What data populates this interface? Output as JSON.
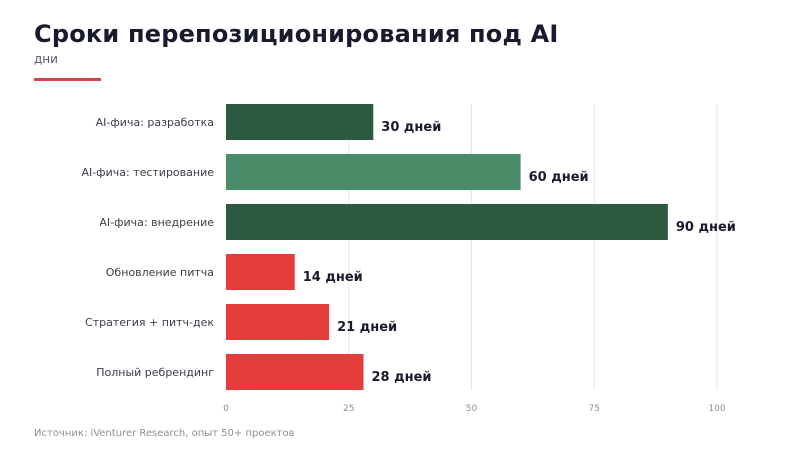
{
  "header": {
    "title": "Сроки перепозиционирования под AI",
    "subtitle": "дни"
  },
  "footer": {
    "source": "Источник: iVenturer Research, опыт 50+ проектов"
  },
  "colors": {
    "dark_green": "#2d5a3f",
    "light_green": "#4a8c68",
    "red": "#e53c3c",
    "accent": "#d64545",
    "grid": "#e4e6ea"
  },
  "chart_data": {
    "type": "bar",
    "orientation": "horizontal",
    "categories": [
      "AI-фича: разработка",
      "AI-фича: тестирование",
      "AI-фича: внедрение",
      "Обновление питча",
      "Стратегия + питч-дек",
      "Полный ребрендинг"
    ],
    "values": [
      30,
      60,
      90,
      14,
      21,
      28
    ],
    "value_labels": [
      "30 дней",
      "60 дней",
      "90 дней",
      "14 дней",
      "21 дней",
      "28 дней"
    ],
    "bar_colors": [
      "#2d5a3f",
      "#4a8c68",
      "#2d5a3f",
      "#e53c3c",
      "#e53c3c",
      "#e53c3c"
    ],
    "xlim": [
      0,
      100
    ],
    "xticks": [
      0,
      25,
      50,
      75,
      100
    ],
    "xtick_labels": [
      "0",
      "25",
      "50",
      "75",
      "100"
    ],
    "grid": true
  }
}
